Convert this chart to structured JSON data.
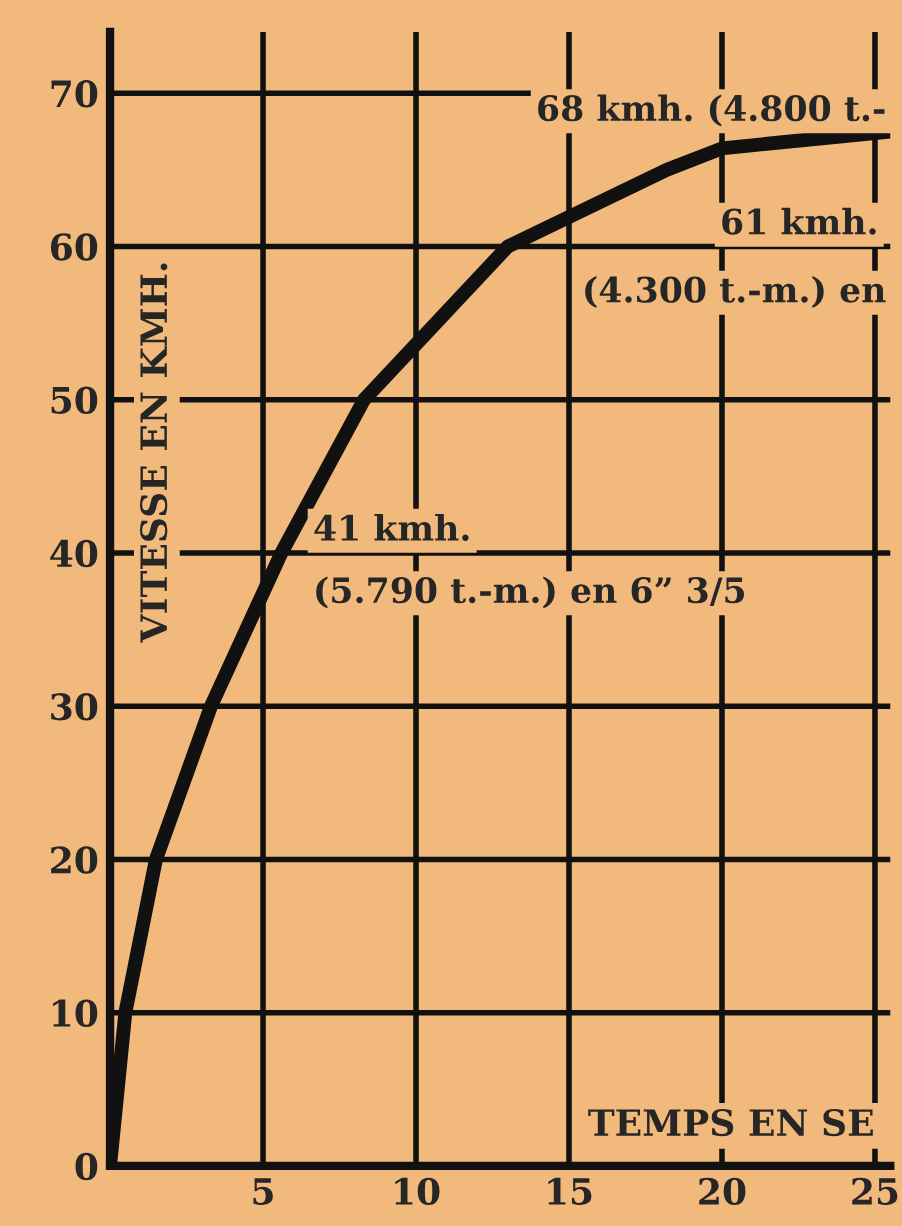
{
  "chart_data": {
    "type": "line",
    "xlabel": "TEMPS EN SE",
    "ylabel": "VITESSE EN KMH.",
    "x": [
      0,
      0.5,
      1.5,
      3.3,
      5.6,
      8.3,
      13,
      18.2,
      20,
      25,
      25.5
    ],
    "series": [
      {
        "color": "#111111",
        "values": [
          0,
          10,
          20,
          30,
          40,
          50,
          60,
          65,
          66.4,
          67.4,
          67.5
        ]
      }
    ],
    "xlim": [
      0,
      25.5
    ],
    "ylim": [
      0,
      74
    ],
    "xticks": [
      5,
      10,
      15,
      20,
      25
    ],
    "yticks": [
      0,
      10,
      20,
      30,
      40,
      50,
      60,
      70
    ],
    "grid": true,
    "line_style": "solid",
    "marker": "none",
    "annotations": [
      "68 kmh. (4.800 t.-",
      "61 kmh.",
      "(4.300 t.-m.) en",
      "41 kmh.",
      "(5.790 t.-m.) en 6” 3/5"
    ]
  }
}
